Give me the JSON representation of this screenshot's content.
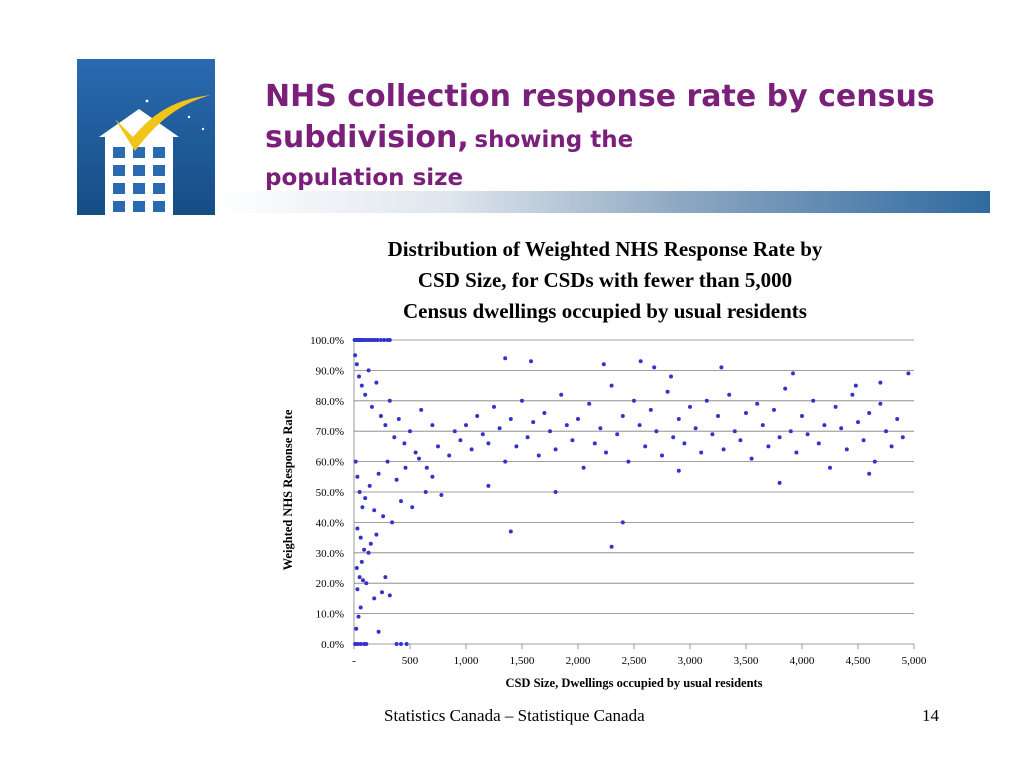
{
  "header": {
    "title_main": "NHS collection response rate by census subdivision,",
    "title_sub_1": "showing the",
    "title_sub_2": "population size"
  },
  "logo": {
    "icon": "house-checkmark-icon",
    "bg_color": "#1d5a96",
    "check_color": "#f2c318"
  },
  "footer": {
    "org": "Statistics Canada – Statistique Canada",
    "page": "14"
  },
  "colors": {
    "title": "#7a1f7a",
    "points": "#3333cc",
    "grid": "#7f7f7f"
  },
  "chart_data": {
    "type": "scatter",
    "title": "Distribution of Weighted NHS Response Rate by CSD Size, for CSDs with fewer than 5,000 Census dwellings occupied by usual residents",
    "title_lines": [
      "Distribution of Weighted NHS Response Rate by",
      "CSD Size, for CSDs with fewer than 5,000",
      "Census dwellings occupied by usual residents"
    ],
    "xlabel": "CSD Size, Dwellings occupied by usual residents",
    "ylabel": "Weighted NHS Response Rate",
    "xlim": [
      0,
      5000
    ],
    "ylim": [
      0,
      100
    ],
    "x_ticks": [
      0,
      500,
      1000,
      1500,
      2000,
      2500,
      3000,
      3500,
      4000,
      4500,
      5000
    ],
    "x_tick_labels": [
      "-",
      "500",
      "1,000",
      "1,500",
      "2,000",
      "2,500",
      "3,000",
      "3,500",
      "4,000",
      "4,500",
      "5,000"
    ],
    "y_ticks": [
      0,
      10,
      20,
      30,
      40,
      50,
      60,
      70,
      80,
      90,
      100
    ],
    "y_tick_labels": [
      "0.0%",
      "10.0%",
      "20.0%",
      "30.0%",
      "40.0%",
      "50.0%",
      "60.0%",
      "70.0%",
      "80.0%",
      "90.0%",
      "100.0%"
    ],
    "grid": "horizontal",
    "legend": "none",
    "points": [
      [
        5,
        100
      ],
      [
        12,
        100
      ],
      [
        20,
        100
      ],
      [
        28,
        100
      ],
      [
        35,
        100
      ],
      [
        45,
        100
      ],
      [
        55,
        100
      ],
      [
        65,
        100
      ],
      [
        75,
        100
      ],
      [
        90,
        100
      ],
      [
        110,
        100
      ],
      [
        130,
        100
      ],
      [
        150,
        100
      ],
      [
        170,
        100
      ],
      [
        190,
        100
      ],
      [
        210,
        100
      ],
      [
        240,
        100
      ],
      [
        270,
        100
      ],
      [
        300,
        100
      ],
      [
        320,
        100
      ],
      [
        10,
        0
      ],
      [
        20,
        0
      ],
      [
        35,
        0
      ],
      [
        60,
        0
      ],
      [
        90,
        0
      ],
      [
        110,
        0
      ],
      [
        380,
        0
      ],
      [
        420,
        0
      ],
      [
        470,
        0
      ],
      [
        20,
        5
      ],
      [
        40,
        9
      ],
      [
        60,
        12
      ],
      [
        30,
        18
      ],
      [
        80,
        21
      ],
      [
        50,
        22
      ],
      [
        110,
        20
      ],
      [
        25,
        25
      ],
      [
        70,
        27
      ],
      [
        130,
        30
      ],
      [
        90,
        31
      ],
      [
        150,
        33
      ],
      [
        60,
        35
      ],
      [
        200,
        36
      ],
      [
        30,
        38
      ],
      [
        180,
        15
      ],
      [
        250,
        17
      ],
      [
        320,
        16
      ],
      [
        280,
        22
      ],
      [
        220,
        4
      ],
      [
        10,
        95
      ],
      [
        25,
        92
      ],
      [
        45,
        88
      ],
      [
        70,
        85
      ],
      [
        100,
        82
      ],
      [
        130,
        90
      ],
      [
        160,
        78
      ],
      [
        200,
        86
      ],
      [
        240,
        75
      ],
      [
        280,
        72
      ],
      [
        320,
        80
      ],
      [
        360,
        68
      ],
      [
        400,
        74
      ],
      [
        450,
        66
      ],
      [
        500,
        70
      ],
      [
        550,
        63
      ],
      [
        600,
        77
      ],
      [
        650,
        58
      ],
      [
        700,
        72
      ],
      [
        750,
        65
      ],
      [
        15,
        60
      ],
      [
        30,
        55
      ],
      [
        50,
        50
      ],
      [
        75,
        45
      ],
      [
        100,
        48
      ],
      [
        140,
        52
      ],
      [
        180,
        44
      ],
      [
        220,
        56
      ],
      [
        260,
        42
      ],
      [
        300,
        60
      ],
      [
        340,
        40
      ],
      [
        380,
        54
      ],
      [
        420,
        47
      ],
      [
        460,
        58
      ],
      [
        520,
        45
      ],
      [
        580,
        61
      ],
      [
        640,
        50
      ],
      [
        700,
        55
      ],
      [
        780,
        49
      ],
      [
        850,
        62
      ],
      [
        900,
        70
      ],
      [
        950,
        67
      ],
      [
        1000,
        72
      ],
      [
        1050,
        64
      ],
      [
        1100,
        75
      ],
      [
        1150,
        69
      ],
      [
        1200,
        66
      ],
      [
        1250,
        78
      ],
      [
        1300,
        71
      ],
      [
        1350,
        60
      ],
      [
        1400,
        74
      ],
      [
        1450,
        65
      ],
      [
        1500,
        80
      ],
      [
        1550,
        68
      ],
      [
        1600,
        73
      ],
      [
        1650,
        62
      ],
      [
        1700,
        76
      ],
      [
        1750,
        70
      ],
      [
        1800,
        64
      ],
      [
        1850,
        82
      ],
      [
        1900,
        72
      ],
      [
        1950,
        67
      ],
      [
        2000,
        74
      ],
      [
        2050,
        58
      ],
      [
        2100,
        79
      ],
      [
        2150,
        66
      ],
      [
        2200,
        71
      ],
      [
        2250,
        63
      ],
      [
        2300,
        85
      ],
      [
        2350,
        69
      ],
      [
        2400,
        75
      ],
      [
        2450,
        60
      ],
      [
        2500,
        80
      ],
      [
        2550,
        72
      ],
      [
        2600,
        65
      ],
      [
        2650,
        77
      ],
      [
        2700,
        70
      ],
      [
        2750,
        62
      ],
      [
        2800,
        83
      ],
      [
        2850,
        68
      ],
      [
        2900,
        74
      ],
      [
        2950,
        66
      ],
      [
        3000,
        78
      ],
      [
        3050,
        71
      ],
      [
        3100,
        63
      ],
      [
        3150,
        80
      ],
      [
        3200,
        69
      ],
      [
        3250,
        75
      ],
      [
        3300,
        64
      ],
      [
        3350,
        82
      ],
      [
        3400,
        70
      ],
      [
        3450,
        67
      ],
      [
        3500,
        76
      ],
      [
        3550,
        61
      ],
      [
        3600,
        79
      ],
      [
        3650,
        72
      ],
      [
        3700,
        65
      ],
      [
        3750,
        77
      ],
      [
        3800,
        68
      ],
      [
        3850,
        84
      ],
      [
        3900,
        70
      ],
      [
        3950,
        63
      ],
      [
        4000,
        75
      ],
      [
        4050,
        69
      ],
      [
        4100,
        80
      ],
      [
        4150,
        66
      ],
      [
        4200,
        72
      ],
      [
        4250,
        58
      ],
      [
        4300,
        78
      ],
      [
        4350,
        71
      ],
      [
        4400,
        64
      ],
      [
        4450,
        82
      ],
      [
        4500,
        73
      ],
      [
        4550,
        67
      ],
      [
        4600,
        76
      ],
      [
        4650,
        60
      ],
      [
        4700,
        79
      ],
      [
        4750,
        70
      ],
      [
        4800,
        65
      ],
      [
        4850,
        74
      ],
      [
        4900,
        68
      ],
      [
        4950,
        89
      ],
      [
        1400,
        37
      ],
      [
        2300,
        32
      ],
      [
        2400,
        40
      ],
      [
        1200,
        52
      ],
      [
        1800,
        50
      ],
      [
        2900,
        57
      ],
      [
        3800,
        53
      ],
      [
        4600,
        56
      ],
      [
        1350,
        94
      ],
      [
        1580,
        93
      ],
      [
        2230,
        92
      ],
      [
        2560,
        93
      ],
      [
        2680,
        91
      ],
      [
        3280,
        91
      ],
      [
        3920,
        89
      ],
      [
        4700,
        86
      ],
      [
        4480,
        85
      ],
      [
        2830,
        88
      ]
    ]
  }
}
